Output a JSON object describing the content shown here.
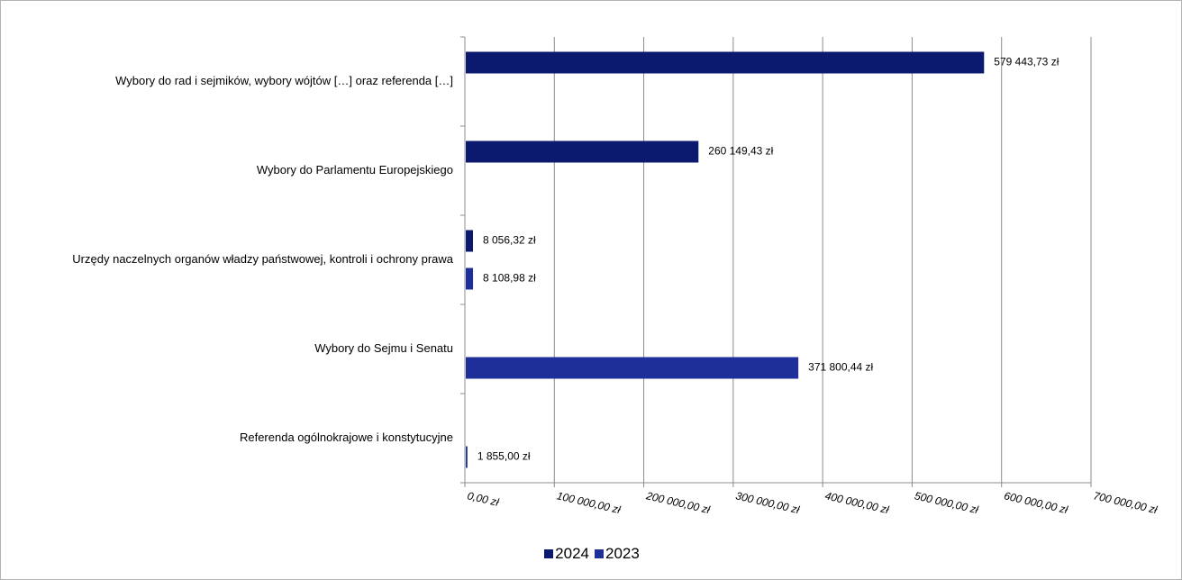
{
  "chart_data": {
    "type": "bar",
    "orientation": "horizontal",
    "categories": [
      "Wybory do rad i sejmików, wybory wójtów […] oraz referenda […]",
      "Wybory do Parlamentu Europejskiego",
      "Urzędy naczelnych organów władzy państwowej, kontroli i ochrony prawa",
      "Wybory do Sejmu i Senatu",
      "Referenda ogólnokrajowe i konstytucyjne"
    ],
    "series": [
      {
        "name": "2024",
        "color": "#0b1a6e",
        "values": [
          579443.73,
          260149.43,
          8056.32,
          null,
          null
        ],
        "labels": [
          "579 443,73 zł",
          "260 149,43 zł",
          "8 056,32 zł",
          "",
          ""
        ]
      },
      {
        "name": "2023",
        "color": "#1f2f9a",
        "values": [
          null,
          null,
          8108.98,
          371800.44,
          1855.0
        ],
        "labels": [
          "",
          "",
          "8 108,98 zł",
          "371 800,44 zł",
          "1 855,00 zł"
        ]
      }
    ],
    "xlim": [
      0,
      700000
    ],
    "ticks": [
      {
        "value": 0,
        "label": "0,00 zł"
      },
      {
        "value": 100000,
        "label": "100 000,00 zł"
      },
      {
        "value": 200000,
        "label": "200 000,00 zł"
      },
      {
        "value": 300000,
        "label": "300 000,00 zł"
      },
      {
        "value": 400000,
        "label": "400 000,00 zł"
      },
      {
        "value": 500000,
        "label": "500 000,00 zł"
      },
      {
        "value": 600000,
        "label": "600 000,00 zł"
      },
      {
        "value": 700000,
        "label": "700 000,00 zł"
      }
    ],
    "grid": true,
    "legend_position": "bottom",
    "title": "",
    "xlabel": "",
    "ylabel": ""
  }
}
